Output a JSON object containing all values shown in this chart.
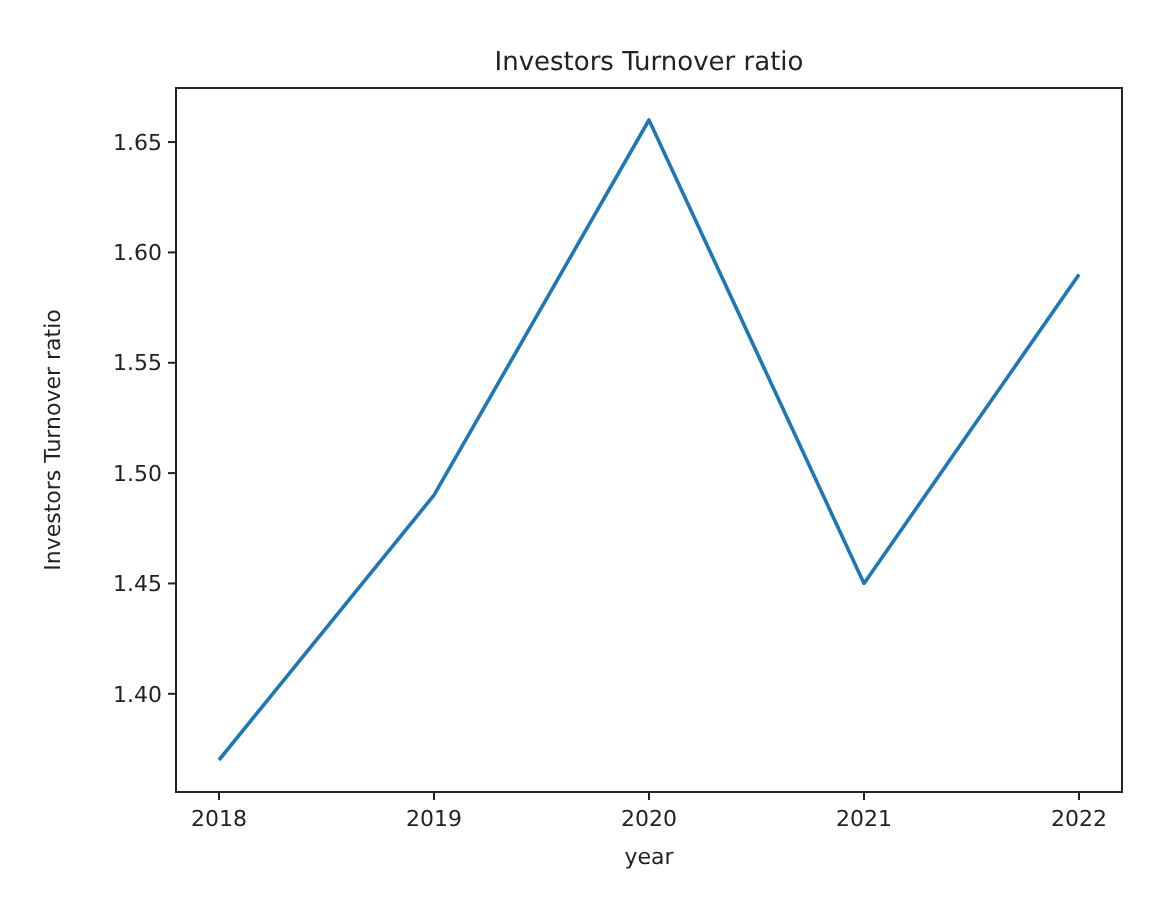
{
  "chart_data": {
    "type": "line",
    "title": "Investors Turnover ratio",
    "xlabel": "year",
    "ylabel": "Investors Turnover ratio",
    "x": [
      2018,
      2019,
      2020,
      2021,
      2022
    ],
    "series": [
      {
        "color": "#1f77b4",
        "values": [
          1.37,
          1.49,
          1.66,
          1.45,
          1.59
        ]
      }
    ],
    "xlim": [
      2017.8,
      2022.2
    ],
    "xticks": [
      2018,
      2019,
      2020,
      2021,
      2022
    ],
    "ylim": [
      1.3555,
      1.6745
    ],
    "yticks": [
      {
        "value": 1.4,
        "label": "1.40"
      },
      {
        "value": 1.45,
        "label": "1.45"
      },
      {
        "value": 1.5,
        "label": "1.50"
      },
      {
        "value": 1.55,
        "label": "1.55"
      },
      {
        "value": 1.6,
        "label": "1.60"
      },
      {
        "value": 1.65,
        "label": "1.65"
      }
    ],
    "grid": false
  }
}
